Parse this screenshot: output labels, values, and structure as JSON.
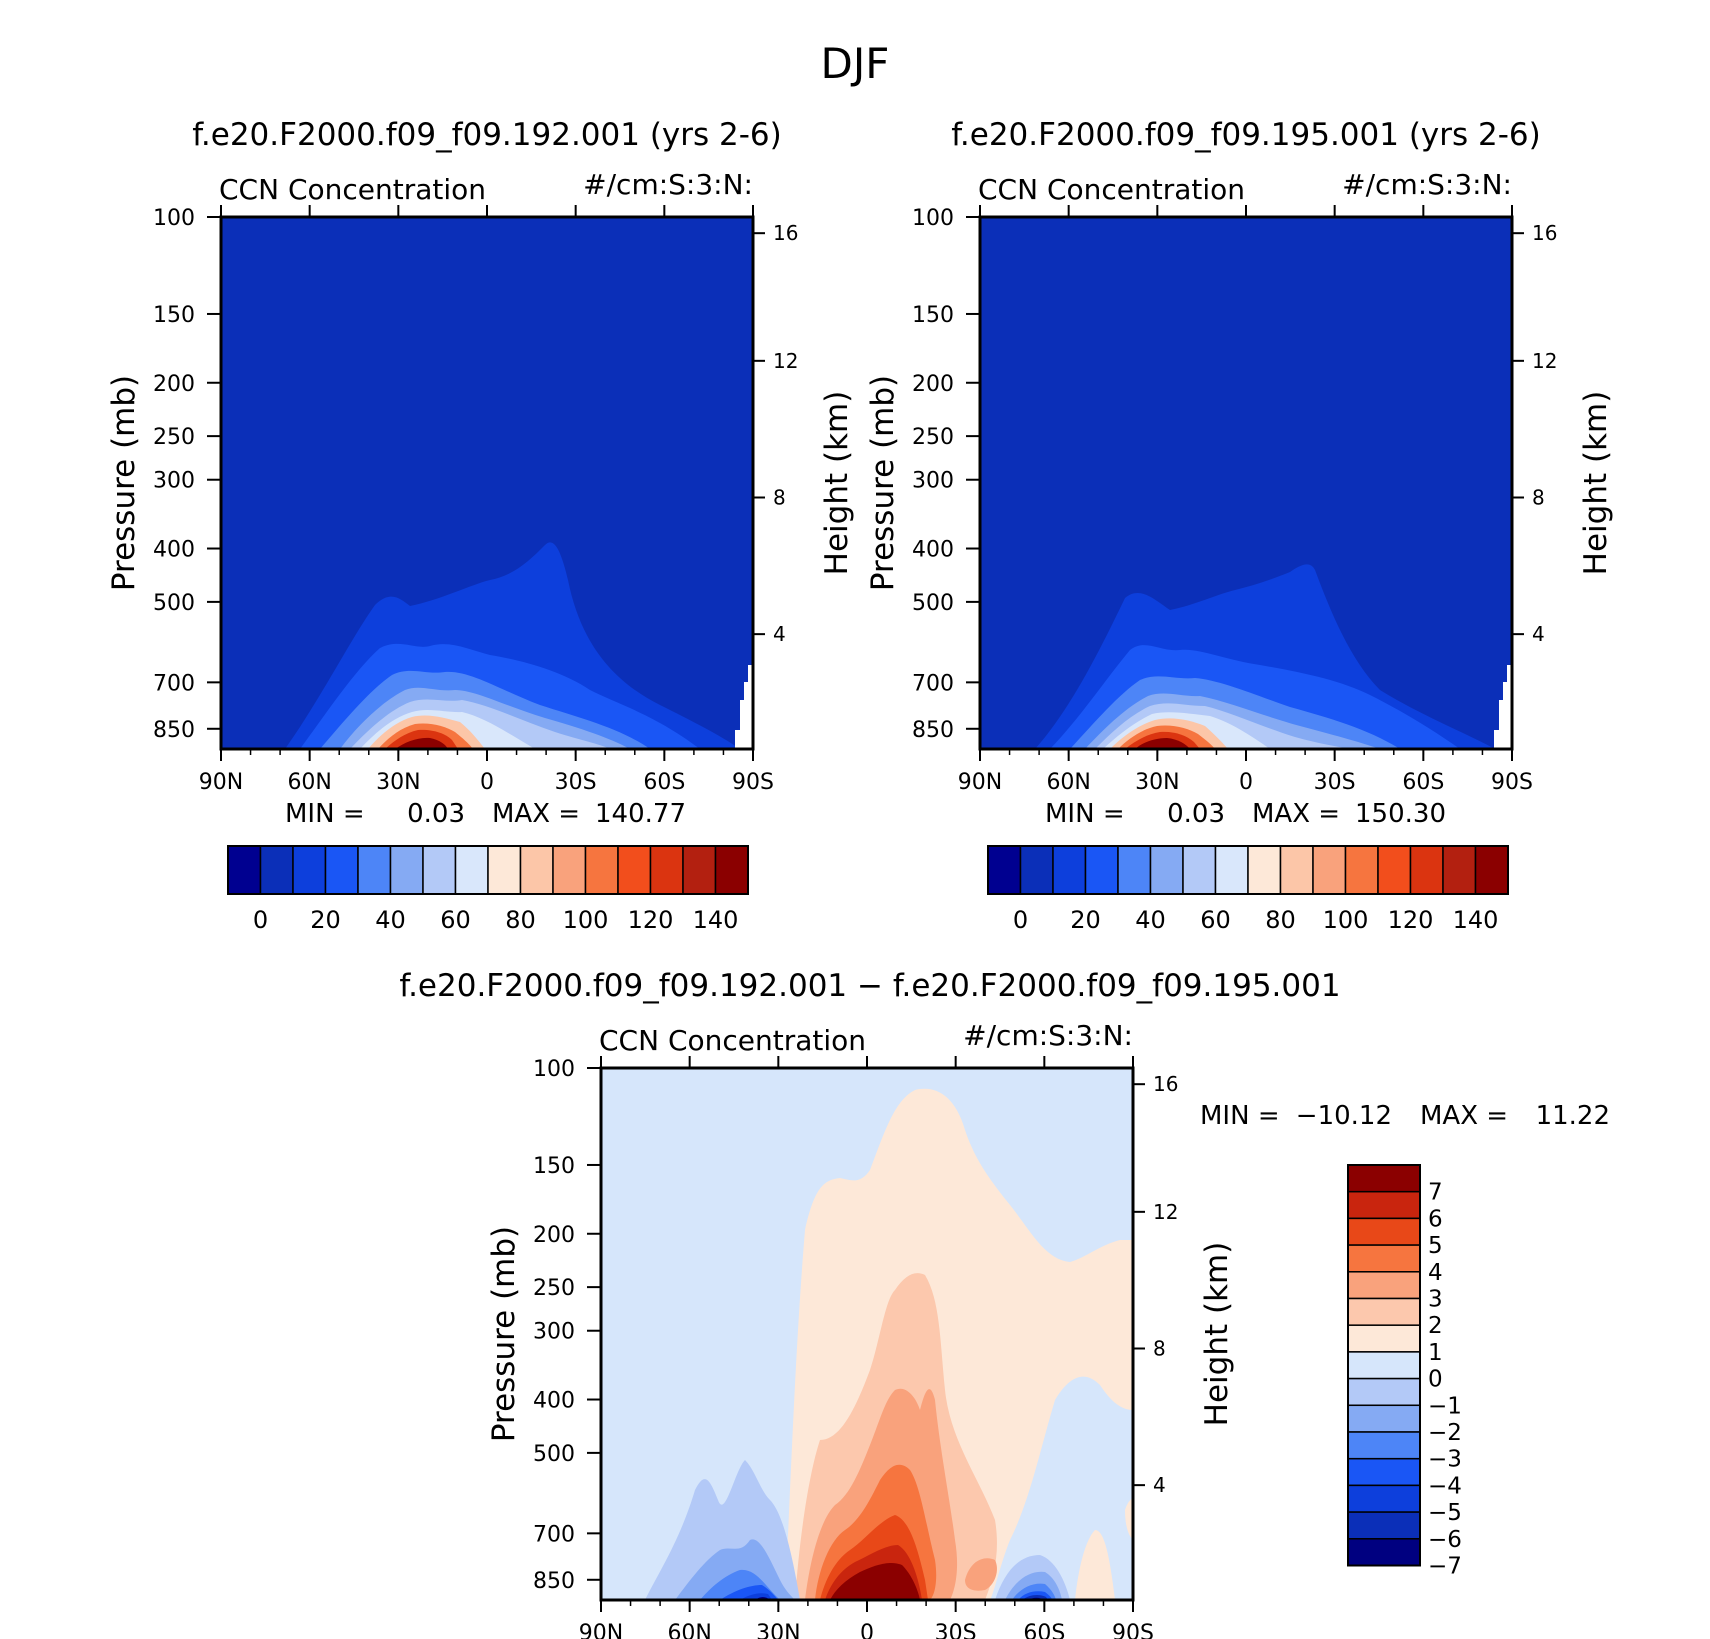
{
  "page": {
    "title": "DJF"
  },
  "colors": {
    "cmap13": [
      "#000090",
      "#0b2fb8",
      "#0d3fdc",
      "#1a56f5",
      "#4d85f7",
      "#85aaf3",
      "#b3c9f7",
      "#d9e7fb",
      "#fde8d8",
      "#fcc6a8",
      "#f9a27c",
      "#f6753f",
      "#f24e1c",
      "#db3410",
      "#b32010",
      "#8b0000"
    ],
    "diff": [
      "#000080",
      "#0b2fb8",
      "#0d3fdc",
      "#1a56f5",
      "#4d85f7",
      "#85aaf3",
      "#b3c9f7",
      "#d6e6fb",
      "#fde8d8",
      "#fcc8ad",
      "#f9a27c",
      "#f6753f",
      "#e84818",
      "#c9250e",
      "#8b0000"
    ]
  },
  "chart_data": [
    {
      "type": "contour",
      "title": "f.e20.F2000.f09_f09.192.001 (yrs 2-6)",
      "subtitle_left": "CCN Concentration",
      "subtitle_right": "#/cm:S:3:N:",
      "xlabel": "",
      "ylabel": "Pressure (mb)",
      "ylabel_right": "Height (km)",
      "x_ticks": [
        "90N",
        "60N",
        "30N",
        "0",
        "30S",
        "60S",
        "90S"
      ],
      "y_ticks": [
        100,
        150,
        200,
        250,
        300,
        400,
        500,
        700,
        850
      ],
      "y_ticks_right": [
        16,
        12,
        8,
        4
      ],
      "ylim": [
        100,
        925
      ],
      "min_label": "MIN =",
      "min": "0.03",
      "max_label": "MAX =",
      "max": "140.77",
      "colorbar_labels": [
        "0",
        "20",
        "40",
        "60",
        "80",
        "100",
        "120",
        "140"
      ],
      "contour_levels": [
        0,
        10,
        20,
        30,
        40,
        50,
        60,
        70,
        80,
        90,
        100,
        110,
        120,
        130,
        140
      ],
      "features": [
        {
          "level_index": 1,
          "top_pressure": 500,
          "x_extent": [
            "70N",
            "80S"
          ],
          "peak": "25S at 380 mb"
        },
        {
          "level_index": 9,
          "top_pressure": 830,
          "x_extent": [
            "40N",
            "0"
          ],
          "peak": "20N near surface"
        }
      ]
    },
    {
      "type": "contour",
      "title": "f.e20.F2000.f09_f09.195.001 (yrs 2-6)",
      "subtitle_left": "CCN Concentration",
      "subtitle_right": "#/cm:S:3:N:",
      "xlabel": "",
      "ylabel": "Pressure (mb)",
      "ylabel_right": "Height (km)",
      "x_ticks": [
        "90N",
        "60N",
        "30N",
        "0",
        "30S",
        "60S",
        "90S"
      ],
      "y_ticks": [
        100,
        150,
        200,
        250,
        300,
        400,
        500,
        700,
        850
      ],
      "y_ticks_right": [
        16,
        12,
        8,
        4
      ],
      "ylim": [
        100,
        925
      ],
      "min_label": "MIN =",
      "min": "0.03",
      "max_label": "MAX =",
      "max": "150.30",
      "colorbar_labels": [
        "0",
        "20",
        "40",
        "60",
        "80",
        "100",
        "120",
        "140"
      ],
      "contour_levels": [
        0,
        10,
        20,
        30,
        40,
        50,
        60,
        70,
        80,
        90,
        100,
        110,
        120,
        130,
        140
      ],
      "features": [
        {
          "level_index": 1,
          "top_pressure": 490,
          "x_extent": [
            "70N",
            "80S"
          ],
          "peak": "25S at 450 mb"
        },
        {
          "level_index": 9,
          "top_pressure": 830,
          "x_extent": [
            "40N",
            "0"
          ],
          "peak": "25N near surface"
        }
      ]
    },
    {
      "type": "contour",
      "title": "f.e20.F2000.f09_f09.192.001 − f.e20.F2000.f09_f09.195.001",
      "subtitle_left": "CCN Concentration",
      "subtitle_right": "#/cm:S:3:N:",
      "xlabel": "",
      "ylabel": "Pressure (mb)",
      "ylabel_right": "Height (km)",
      "x_ticks": [
        "90N",
        "60N",
        "30N",
        "0",
        "30S",
        "60S",
        "90S"
      ],
      "y_ticks": [
        100,
        150,
        200,
        250,
        300,
        400,
        500,
        700,
        850
      ],
      "y_ticks_right": [
        16,
        12,
        8,
        4
      ],
      "ylim": [
        100,
        925
      ],
      "min_label": "MIN =",
      "min": "−10.12",
      "max_label": "MAX =",
      "max": "11.22",
      "colorbar_labels": [
        "7",
        "6",
        "5",
        "4",
        "3",
        "2",
        "1",
        "0",
        "−1",
        "−2",
        "−3",
        "−4",
        "−5",
        "−6",
        "−7"
      ],
      "contour_levels": [
        -7,
        -6,
        -5,
        -4,
        -3,
        -2,
        -1,
        0,
        1,
        2,
        3,
        4,
        5,
        6,
        7
      ]
    }
  ]
}
